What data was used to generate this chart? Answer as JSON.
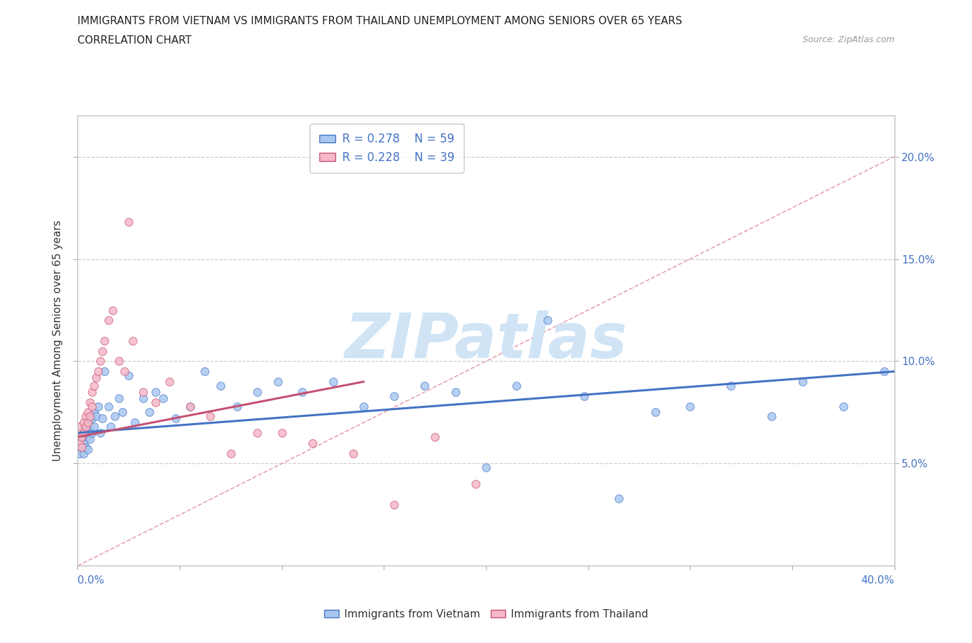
{
  "title_line1": "IMMIGRANTS FROM VIETNAM VS IMMIGRANTS FROM THAILAND UNEMPLOYMENT AMONG SENIORS OVER 65 YEARS",
  "title_line2": "CORRELATION CHART",
  "source_text": "Source: ZipAtlas.com",
  "ylabel": "Unemployment Among Seniors over 65 years",
  "r_vietnam": 0.278,
  "n_vietnam": 59,
  "r_thailand": 0.228,
  "n_thailand": 39,
  "vietnam_color": "#a8c8f0",
  "thailand_color": "#f5b8c8",
  "trend_vietnam_color": "#4472c4",
  "trend_thailand_color": "#c45070",
  "diagonal_color": "#e8a0b0",
  "watermark_color": "#d0e4f5",
  "yticks": [
    0.05,
    0.1,
    0.15,
    0.2
  ],
  "ytick_labels": [
    "5.0%",
    "10.0%",
    "15.0%",
    "20.0%"
  ],
  "legend_label_vietnam": "Immigrants from Vietnam",
  "legend_label_thailand": "Immigrants from Thailand",
  "xlim": [
    0.0,
    0.4
  ],
  "ylim": [
    0.0,
    0.22
  ],
  "vietnam_x": [
    0.001,
    0.001,
    0.002,
    0.002,
    0.003,
    0.003,
    0.003,
    0.004,
    0.004,
    0.005,
    0.005,
    0.005,
    0.006,
    0.006,
    0.007,
    0.007,
    0.008,
    0.008,
    0.009,
    0.01,
    0.011,
    0.012,
    0.013,
    0.015,
    0.016,
    0.018,
    0.02,
    0.022,
    0.025,
    0.028,
    0.032,
    0.035,
    0.038,
    0.042,
    0.048,
    0.055,
    0.062,
    0.07,
    0.078,
    0.088,
    0.098,
    0.11,
    0.125,
    0.14,
    0.155,
    0.17,
    0.185,
    0.2,
    0.215,
    0.23,
    0.248,
    0.265,
    0.283,
    0.3,
    0.32,
    0.34,
    0.355,
    0.375,
    0.395
  ],
  "vietnam_y": [
    0.06,
    0.055,
    0.063,
    0.058,
    0.067,
    0.06,
    0.055,
    0.065,
    0.058,
    0.07,
    0.063,
    0.057,
    0.068,
    0.062,
    0.072,
    0.065,
    0.075,
    0.068,
    0.073,
    0.078,
    0.065,
    0.072,
    0.095,
    0.078,
    0.068,
    0.073,
    0.082,
    0.075,
    0.093,
    0.07,
    0.082,
    0.075,
    0.085,
    0.082,
    0.072,
    0.078,
    0.095,
    0.088,
    0.078,
    0.085,
    0.09,
    0.085,
    0.09,
    0.078,
    0.083,
    0.088,
    0.085,
    0.048,
    0.088,
    0.12,
    0.083,
    0.033,
    0.075,
    0.078,
    0.088,
    0.073,
    0.09,
    0.078,
    0.095
  ],
  "thailand_x": [
    0.001,
    0.001,
    0.002,
    0.002,
    0.003,
    0.003,
    0.004,
    0.004,
    0.005,
    0.005,
    0.006,
    0.006,
    0.007,
    0.007,
    0.008,
    0.009,
    0.01,
    0.011,
    0.012,
    0.013,
    0.015,
    0.017,
    0.02,
    0.023,
    0.027,
    0.032,
    0.038,
    0.045,
    0.055,
    0.065,
    0.075,
    0.088,
    0.1,
    0.115,
    0.135,
    0.155,
    0.175,
    0.195,
    0.025
  ],
  "thailand_y": [
    0.06,
    0.068,
    0.063,
    0.058,
    0.07,
    0.065,
    0.073,
    0.068,
    0.075,
    0.07,
    0.08,
    0.073,
    0.085,
    0.078,
    0.088,
    0.092,
    0.095,
    0.1,
    0.105,
    0.11,
    0.12,
    0.125,
    0.1,
    0.095,
    0.11,
    0.085,
    0.08,
    0.09,
    0.078,
    0.073,
    0.055,
    0.065,
    0.065,
    0.06,
    0.055,
    0.03,
    0.063,
    0.04,
    0.168
  ],
  "trend_viet_x0": 0.0,
  "trend_viet_x1": 0.4,
  "trend_viet_y0": 0.065,
  "trend_viet_y1": 0.095,
  "trend_thai_x0": 0.0,
  "trend_thai_x1": 0.14,
  "trend_thai_y0": 0.063,
  "trend_thai_y1": 0.09
}
